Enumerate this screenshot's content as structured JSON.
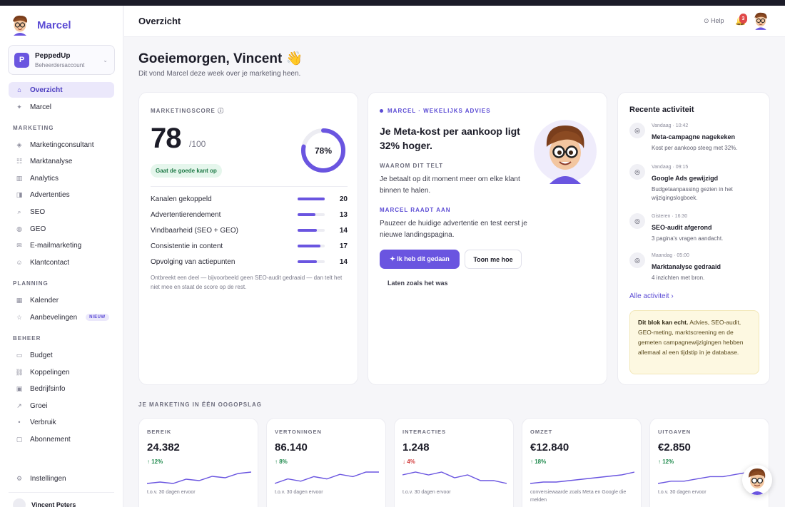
{
  "brand": {
    "name": "Marcel"
  },
  "account": {
    "initial": "P",
    "name": "PeppedUp",
    "role": "Beheerdersaccount"
  },
  "nav": {
    "top": [
      {
        "icon": "⌂",
        "label": "Overzicht",
        "active": true
      },
      {
        "icon": "✦",
        "label": "Marcel"
      }
    ],
    "marketing_head": "MARKETING",
    "marketing": [
      {
        "icon": "◈",
        "label": "Marketingconsultant"
      },
      {
        "icon": "☷",
        "label": "Marktanalyse"
      },
      {
        "icon": "▥",
        "label": "Analytics"
      },
      {
        "icon": "◨",
        "label": "Advertenties"
      },
      {
        "icon": "⌕",
        "label": "SEO"
      },
      {
        "icon": "◍",
        "label": "GEO"
      },
      {
        "icon": "✉",
        "label": "E-mailmarketing"
      },
      {
        "icon": "☺",
        "label": "Klantcontact"
      }
    ],
    "planning_head": "PLANNING",
    "planning": [
      {
        "icon": "▦",
        "label": "Kalender"
      },
      {
        "icon": "☆",
        "label": "Aanbevelingen",
        "badge": "NIEUW"
      }
    ],
    "beheer_head": "BEHEER",
    "beheer": [
      {
        "icon": "▭",
        "label": "Budget"
      },
      {
        "icon": "⛓",
        "label": "Koppelingen"
      },
      {
        "icon": "▣",
        "label": "Bedrijfsinfo"
      },
      {
        "icon": "↗",
        "label": "Groei"
      },
      {
        "icon": "•",
        "label": "Verbruik"
      },
      {
        "icon": "▢",
        "label": "Abonnement"
      }
    ],
    "settings": {
      "icon": "⚙",
      "label": "Instellingen"
    }
  },
  "user": {
    "name": "Vincent Peters"
  },
  "header": {
    "title": "Overzicht",
    "help": "⊙ Help",
    "notifications": "3"
  },
  "greeting": {
    "title": "Goeiemorgen, Vincent 👋",
    "subtitle": "Dit vond Marcel deze week over je marketing heen."
  },
  "score": {
    "label": "MARKETINGSCORE ⓘ",
    "value": "78",
    "max": "/100",
    "percent": 78,
    "percent_label": "78%",
    "status": "Gaat de goede kant op",
    "metrics": [
      {
        "label": "Kanalen gekoppeld",
        "value": "20",
        "max": 20
      },
      {
        "label": "Advertentierendement",
        "value": "13",
        "max": 20
      },
      {
        "label": "Vindbaarheid (SEO + GEO)",
        "value": "14",
        "max": 20
      },
      {
        "label": "Consistentie in content",
        "value": "17",
        "max": 20
      },
      {
        "label": "Opvolging van actiepunten",
        "value": "14",
        "max": 20
      }
    ],
    "note": "Ontbreekt een deel — bijvoorbeeld geen SEO-audit gedraaid — dan telt het niet mee en staat de score op de rest."
  },
  "advice": {
    "eyebrow": "MARCEL · WEKELIJKS ADVIES",
    "headline": "Je Meta-kost per aankoop ligt 32% hoger.",
    "why_label": "WAAROM DIT TELT",
    "why_text": "Je betaalt op dit moment meer om elke klant binnen te halen.",
    "tip_label": "MARCEL RAADT AAN",
    "tip_text": "Pauzeer de huidige advertentie en test eerst je nieuwe landingspagina.",
    "primary_btn": "✦  Ik heb dit gedaan",
    "secondary_btn": "Toon me hoe",
    "link_btn": "Laten zoals het was"
  },
  "activity": {
    "title": "Recente activiteit",
    "items": [
      {
        "date": "Vandaag · 10:42",
        "title": "Meta-campagne nagekeken",
        "text": "Kost per aankoop steeg met 32%."
      },
      {
        "date": "Vandaag · 09:15",
        "title": "Google Ads gewijzigd",
        "text": "Budgetaanpassing gezien in het wijzigingslogboek."
      },
      {
        "date": "Gisteren · 16:30",
        "title": "SEO-audit afgerond",
        "text": "3 pagina's vragen aandacht."
      },
      {
        "date": "Maandag · 05:00",
        "title": "Marktanalyse gedraaid",
        "text": "4 inzichten met bron."
      }
    ],
    "all_link": "Alle activiteit ›",
    "notice_bold": "Dit blok kan echt.",
    "notice_text": " Advies, SEO-audit, GEO-meting, marktscreening en de gemeten campagnewijzigingen hebben allemaal al een tijdstip in je database."
  },
  "overview": {
    "heading": "JE MARKETING IN ÉÉN OOGOPSLAG",
    "kpis": [
      {
        "label": "BEREIK",
        "value": "24.382",
        "delta": "↑ 12%",
        "trend": "up",
        "note": "t.o.v. 30 dagen ervoor",
        "spark": [
          4,
          5,
          4,
          7,
          6,
          9,
          8,
          11,
          12
        ]
      },
      {
        "label": "VERTONINGEN",
        "value": "86.140",
        "delta": "↑ 8%",
        "trend": "up",
        "note": "t.o.v. 30 dagen ervoor",
        "spark": [
          4,
          6,
          5,
          7,
          6,
          8,
          7,
          9,
          9
        ]
      },
      {
        "label": "INTERACTIES",
        "value": "1.248",
        "delta": "↓ 4%",
        "trend": "down",
        "note": "t.o.v. 30 dagen ervoor",
        "spark": [
          8,
          9,
          8,
          9,
          7,
          8,
          6,
          6,
          5
        ]
      },
      {
        "label": "OMZET",
        "value": "€12.840",
        "delta": "↑ 18%",
        "trend": "up",
        "note": "conversiewaarde zoals Meta en Google die melden",
        "spark": [
          2,
          3,
          3,
          4,
          5,
          6,
          7,
          8,
          10
        ]
      },
      {
        "label": "UITGAVEN",
        "value": "€2.850",
        "delta": "↑ 12%",
        "trend": "up",
        "note": "t.o.v. 30 dagen ervoor",
        "spark": [
          3,
          4,
          4,
          5,
          6,
          6,
          7,
          8,
          8
        ]
      }
    ]
  },
  "colors": {
    "accent": "#6a55e0",
    "up": "#1f8a4d",
    "down": "#d23b3b"
  }
}
